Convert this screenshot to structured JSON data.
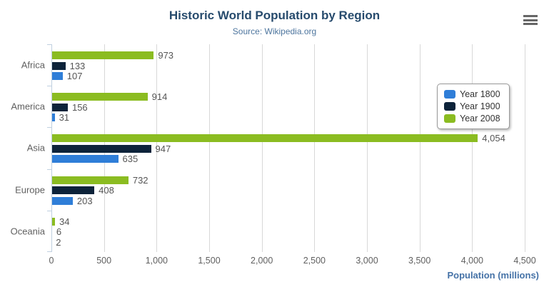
{
  "chart_data": {
    "type": "bar",
    "orientation": "horizontal",
    "title": "Historic World Population by Region",
    "subtitle": "Source: Wikipedia.org",
    "categories": [
      "Africa",
      "America",
      "Asia",
      "Europe",
      "Oceania"
    ],
    "series": [
      {
        "name": "Year 1800",
        "color": "#2f7ed8",
        "values": [
          107,
          31,
          635,
          203,
          2
        ],
        "labels": [
          "107",
          "31",
          "635",
          "203",
          "2"
        ]
      },
      {
        "name": "Year 1900",
        "color": "#0d233a",
        "values": [
          133,
          156,
          947,
          408,
          6
        ],
        "labels": [
          "133",
          "156",
          "947",
          "408",
          "6"
        ]
      },
      {
        "name": "Year 2008",
        "color": "#8bbc21",
        "values": [
          973,
          914,
          4054,
          732,
          34
        ],
        "labels": [
          "973",
          "914",
          "4,054",
          "732",
          "34"
        ]
      }
    ],
    "series_display_order_top_to_bottom": [
      "Year 2008",
      "Year 1900",
      "Year 1800"
    ],
    "xlabel": "Population (millions)",
    "value_axis": {
      "min": 0,
      "max": 4500,
      "tick_interval": 500,
      "tick_labels": [
        "0",
        "500",
        "1,000",
        "1,500",
        "2,000",
        "2,500",
        "3,000",
        "3,500",
        "4,000",
        "4,500"
      ]
    },
    "legend": {
      "position": "right",
      "entries": [
        "Year 1800",
        "Year 1900",
        "Year 2008"
      ]
    },
    "grid": true
  },
  "colors": {
    "title": "#274b6d",
    "subtitle": "#4d759e",
    "axis_title": "#4572a7",
    "axis_labels": "#606060",
    "data_labels": "#555555",
    "gridline": "#d8d8d8",
    "category_axis_line": "#c0d0e0",
    "series_blue": "#2f7ed8",
    "series_navy": "#0d233a",
    "series_green": "#8bbc21",
    "menu_icon": "#666666"
  }
}
